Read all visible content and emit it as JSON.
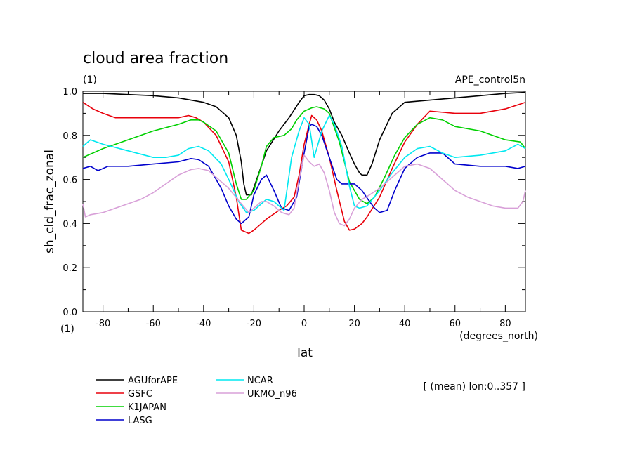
{
  "chart_data": {
    "type": "line",
    "title": "cloud area fraction",
    "title_unit": "(1)",
    "experiment": "APE_control5n",
    "xlabel": "lat",
    "xunit": "(degrees_north)",
    "ylabel": "sh_cld_frac_zonal",
    "yunit": "(1)",
    "annotation": "[ (mean) lon:0..357 ]",
    "xlim": [
      -88,
      88
    ],
    "ylim": [
      0,
      1
    ],
    "xticks": [
      "-80",
      "-60",
      "-40",
      "-20",
      "0",
      "20",
      "40",
      "60",
      "80"
    ],
    "yticks": [
      "0.0",
      "0.2",
      "0.4",
      "0.6",
      "0.8",
      "1.0"
    ],
    "legend_position": "bottom-left",
    "series": [
      {
        "name": "AGUforAPE",
        "color": "#000000",
        "x": [
          -88,
          -80,
          -70,
          -60,
          -50,
          -40,
          -35,
          -30,
          -27,
          -25,
          -24,
          -23,
          -21,
          -18,
          -15,
          -10,
          -6,
          -2,
          0,
          2,
          4,
          6,
          8,
          10,
          12,
          15,
          18,
          20,
          22,
          23,
          25,
          27,
          30,
          35,
          40,
          50,
          60,
          70,
          80,
          88
        ],
        "y": [
          0.99,
          0.99,
          0.985,
          0.98,
          0.97,
          0.95,
          0.93,
          0.88,
          0.8,
          0.68,
          0.58,
          0.53,
          0.53,
          0.63,
          0.73,
          0.82,
          0.88,
          0.95,
          0.98,
          0.985,
          0.985,
          0.98,
          0.96,
          0.92,
          0.86,
          0.8,
          0.72,
          0.67,
          0.63,
          0.62,
          0.62,
          0.67,
          0.78,
          0.9,
          0.95,
          0.96,
          0.97,
          0.98,
          0.99,
          0.995
        ]
      },
      {
        "name": "GSFC",
        "color": "#e8000b",
        "x": [
          -88,
          -84,
          -80,
          -75,
          -70,
          -60,
          -50,
          -46,
          -43,
          -40,
          -35,
          -30,
          -27,
          -25,
          -22,
          -20,
          -15,
          -10,
          -7,
          -4,
          -2,
          0,
          2,
          3,
          5,
          7,
          10,
          13,
          16,
          18,
          20,
          23,
          25,
          30,
          35,
          40,
          45,
          50,
          60,
          70,
          80,
          88
        ],
        "y": [
          0.95,
          0.92,
          0.9,
          0.88,
          0.88,
          0.88,
          0.88,
          0.89,
          0.88,
          0.86,
          0.8,
          0.68,
          0.52,
          0.37,
          0.355,
          0.37,
          0.42,
          0.46,
          0.48,
          0.52,
          0.62,
          0.76,
          0.85,
          0.89,
          0.87,
          0.82,
          0.7,
          0.55,
          0.41,
          0.37,
          0.375,
          0.4,
          0.43,
          0.52,
          0.65,
          0.77,
          0.85,
          0.91,
          0.9,
          0.9,
          0.92,
          0.95
        ]
      },
      {
        "name": "K1JAPAN",
        "color": "#00d000",
        "x": [
          -88,
          -80,
          -70,
          -60,
          -50,
          -45,
          -42,
          -40,
          -35,
          -30,
          -27,
          -25,
          -23,
          -20,
          -17,
          -15,
          -12,
          -8,
          -5,
          -3,
          0,
          3,
          5,
          8,
          10,
          14,
          18,
          22,
          25,
          28,
          32,
          36,
          40,
          45,
          50,
          55,
          60,
          70,
          80,
          86,
          88
        ],
        "y": [
          0.7,
          0.74,
          0.78,
          0.82,
          0.85,
          0.87,
          0.87,
          0.86,
          0.82,
          0.72,
          0.58,
          0.51,
          0.51,
          0.55,
          0.66,
          0.75,
          0.79,
          0.8,
          0.83,
          0.87,
          0.91,
          0.925,
          0.93,
          0.92,
          0.9,
          0.77,
          0.59,
          0.51,
          0.49,
          0.52,
          0.61,
          0.71,
          0.79,
          0.85,
          0.88,
          0.87,
          0.84,
          0.82,
          0.78,
          0.77,
          0.74
        ]
      },
      {
        "name": "LASG",
        "color": "#0000cc",
        "x": [
          -88,
          -85,
          -82,
          -78,
          -70,
          -60,
          -50,
          -45,
          -42,
          -38,
          -33,
          -30,
          -27,
          -25,
          -22,
          -20,
          -17,
          -15,
          -12,
          -9,
          -6,
          -3,
          0,
          2,
          3,
          5,
          7,
          10,
          13,
          15,
          20,
          23,
          26,
          28,
          30,
          33,
          36,
          40,
          45,
          50,
          55,
          60,
          70,
          80,
          85,
          88
        ],
        "y": [
          0.65,
          0.66,
          0.64,
          0.66,
          0.66,
          0.67,
          0.68,
          0.695,
          0.69,
          0.66,
          0.56,
          0.48,
          0.42,
          0.4,
          0.43,
          0.53,
          0.6,
          0.62,
          0.55,
          0.47,
          0.46,
          0.52,
          0.72,
          0.84,
          0.85,
          0.84,
          0.8,
          0.7,
          0.6,
          0.58,
          0.58,
          0.55,
          0.5,
          0.47,
          0.45,
          0.46,
          0.55,
          0.65,
          0.7,
          0.72,
          0.72,
          0.67,
          0.66,
          0.66,
          0.65,
          0.66
        ]
      },
      {
        "name": "NCAR",
        "color": "#00e8f0",
        "x": [
          -88,
          -85,
          -80,
          -70,
          -60,
          -55,
          -50,
          -46,
          -42,
          -38,
          -33,
          -30,
          -26,
          -23,
          -20,
          -15,
          -12,
          -8,
          -5,
          -2,
          0,
          2,
          4,
          7,
          10,
          12,
          15,
          18,
          20,
          22,
          25,
          30,
          35,
          40,
          45,
          50,
          55,
          60,
          70,
          80,
          85,
          88
        ],
        "y": [
          0.75,
          0.78,
          0.76,
          0.73,
          0.7,
          0.7,
          0.71,
          0.74,
          0.75,
          0.73,
          0.67,
          0.6,
          0.5,
          0.45,
          0.46,
          0.51,
          0.5,
          0.46,
          0.7,
          0.82,
          0.88,
          0.85,
          0.7,
          0.82,
          0.89,
          0.85,
          0.75,
          0.57,
          0.48,
          0.47,
          0.48,
          0.55,
          0.63,
          0.7,
          0.74,
          0.75,
          0.72,
          0.7,
          0.71,
          0.73,
          0.76,
          0.74
        ]
      },
      {
        "name": "UKMO_n96",
        "color": "#d8a0d8",
        "x": [
          -88,
          -87,
          -85,
          -80,
          -75,
          -70,
          -65,
          -60,
          -55,
          -50,
          -45,
          -42,
          -38,
          -35,
          -30,
          -25,
          -22,
          -20,
          -17,
          -15,
          -12,
          -9,
          -6,
          -4,
          -2,
          0,
          2,
          4,
          6,
          8,
          10,
          12,
          14,
          16,
          18,
          20,
          23,
          26,
          30,
          35,
          40,
          45,
          50,
          55,
          60,
          65,
          70,
          75,
          80,
          85,
          87,
          88
        ],
        "y": [
          0.49,
          0.43,
          0.44,
          0.45,
          0.47,
          0.49,
          0.51,
          0.54,
          0.58,
          0.62,
          0.645,
          0.65,
          0.64,
          0.61,
          0.56,
          0.49,
          0.45,
          0.47,
          0.5,
          0.5,
          0.48,
          0.45,
          0.44,
          0.47,
          0.6,
          0.71,
          0.68,
          0.66,
          0.67,
          0.63,
          0.55,
          0.45,
          0.4,
          0.39,
          0.42,
          0.47,
          0.51,
          0.53,
          0.56,
          0.61,
          0.66,
          0.67,
          0.65,
          0.6,
          0.55,
          0.52,
          0.5,
          0.48,
          0.47,
          0.47,
          0.5,
          0.55
        ]
      }
    ]
  }
}
